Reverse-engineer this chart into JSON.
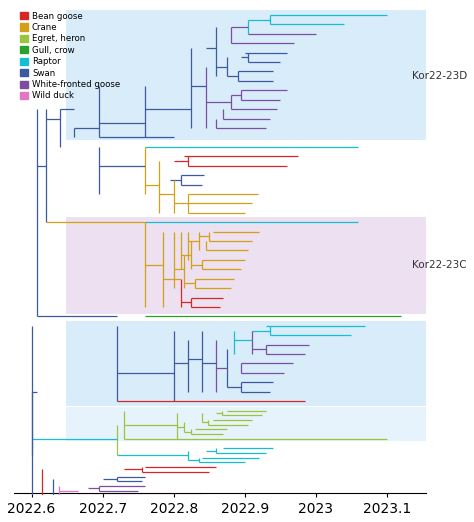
{
  "colors": {
    "Bean goose": "#d62728",
    "Crane": "#d4a017",
    "Egret, heron": "#9bc43d",
    "Gull, crow": "#2ca02c",
    "Raptor": "#17becf",
    "Swan": "#3c5aa0",
    "White-fronted goose": "#7b4fa0",
    "Wild duck": "#e377c2"
  },
  "legend_order": [
    "Bean goose",
    "Crane",
    "Egret, heron",
    "Gull, crow",
    "Raptor",
    "Swan",
    "White-fronted goose",
    "Wild duck"
  ],
  "xlim": [
    2022.575,
    2023.155
  ],
  "ylim": [
    -2,
    102
  ],
  "xticks": [
    2022.6,
    2022.7,
    2022.8,
    2022.9,
    2023.0,
    2023.1
  ],
  "xticklabels": [
    "2022.6",
    "2022.7",
    "2022.8",
    "2022.9",
    "2023",
    "2023.1"
  ],
  "kor22_23D_label": "Kor22-23D",
  "kor22_23C_label": "Kor22-23C",
  "bg_color_D": "#d8ecfa",
  "bg_color_C": "#ede0f0",
  "bg_color_lower1": "#d8ecfa",
  "bg_color_lower2": "#d8ecfa"
}
